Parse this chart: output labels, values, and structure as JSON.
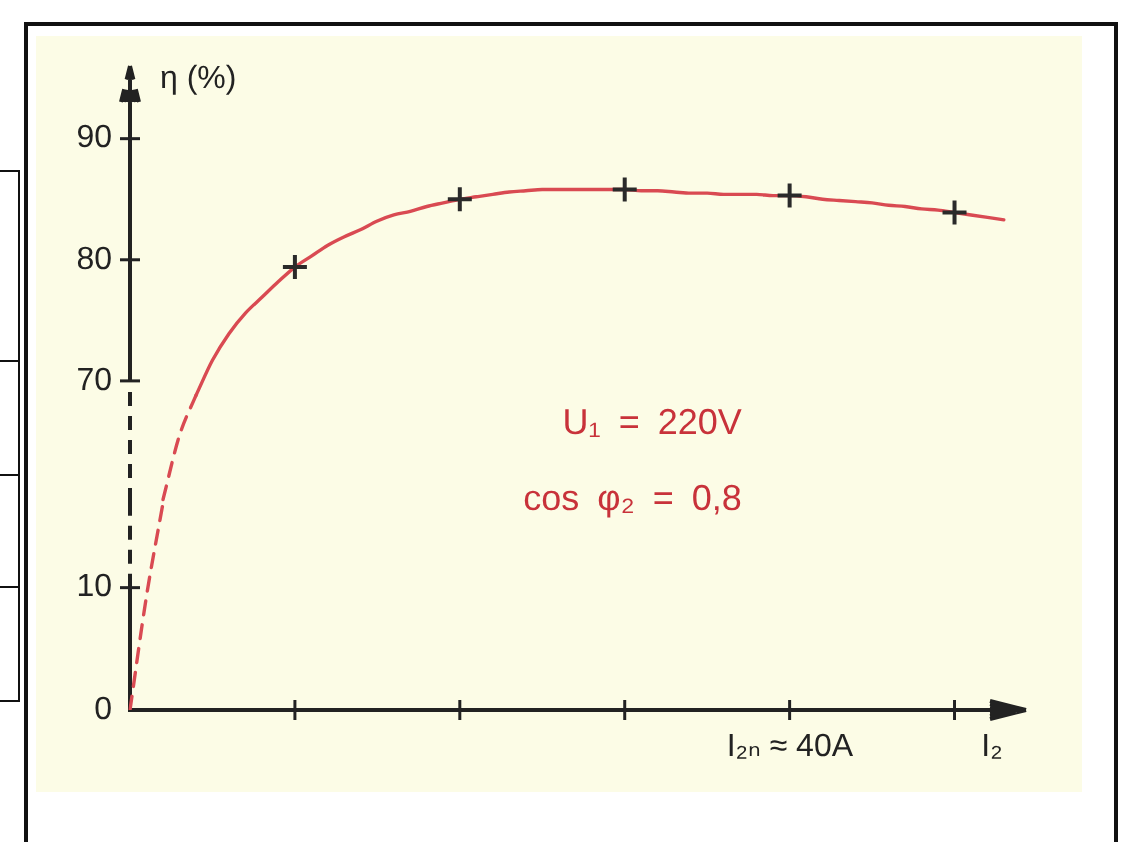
{
  "chart_data": [
    {
      "type": "line",
      "ylabel": "η (%)",
      "annotations": [
        "U₁ = 220V",
        "cos φ₂ = 0,8"
      ],
      "categories": [
        null,
        null,
        null,
        null,
        null,
        null,
        null,
        null,
        null,
        null,
        null,
        null,
        null,
        null,
        null,
        null,
        null,
        null,
        null,
        null,
        null,
        null,
        null,
        null,
        null,
        null,
        null,
        null,
        null,
        null,
        null,
        null,
        null,
        null,
        null,
        null,
        null,
        null,
        null,
        null,
        null,
        null,
        null,
        null,
        null,
        null,
        null,
        null,
        null,
        null,
        null,
        null,
        null,
        null
      ],
      "tick_labels": "y",
      "ylim": [
        60,
        96
      ],
      "yticks": [
        70,
        80,
        90
      ],
      "series": [
        {
          "color": "#d94a52",
          "line_style": "dashed",
          "marker": "none",
          "values": [
            null,
            null,
            60.2,
            65.5,
            68.8,
            null,
            null,
            null,
            null,
            null,
            null,
            null,
            null,
            null,
            null,
            null,
            null,
            null,
            null,
            null,
            null,
            null,
            null,
            null,
            null,
            null,
            null,
            null,
            null,
            null,
            null,
            null,
            null,
            null,
            null,
            null,
            null,
            null,
            null,
            null,
            null,
            null,
            null,
            null,
            null,
            null,
            null,
            null,
            null,
            null,
            null,
            null,
            null,
            null
          ]
        },
        {
          "color": "#d94a52",
          "line_style": "solid",
          "marker": "none",
          "values": [
            null,
            null,
            null,
            null,
            68.8,
            71.7,
            73.9,
            75.6,
            76.9,
            78.2,
            79.4,
            80.3,
            81.2,
            81.9,
            82.5,
            83.2,
            83.7,
            84.0,
            84.4,
            84.7,
            85.0,
            85.2,
            85.4,
            85.6,
            85.7,
            85.8,
            85.8,
            85.8,
            85.8,
            85.8,
            85.8,
            85.7,
            85.7,
            85.6,
            85.5,
            85.5,
            85.4,
            85.4,
            85.4,
            85.3,
            85.3,
            85.2,
            85.0,
            84.9,
            84.8,
            84.7,
            84.5,
            84.4,
            84.2,
            84.1,
            83.9,
            83.7,
            83.5,
            83.3
          ]
        },
        {
          "type": "scatter",
          "color": "#2a2a2a",
          "marker": "cross",
          "values": [
            null,
            null,
            null,
            null,
            null,
            null,
            null,
            null,
            null,
            null,
            79.4,
            null,
            null,
            null,
            null,
            null,
            null,
            null,
            null,
            null,
            85.0,
            null,
            null,
            null,
            null,
            null,
            null,
            null,
            null,
            null,
            85.8,
            null,
            null,
            null,
            null,
            null,
            null,
            null,
            null,
            null,
            85.3,
            null,
            null,
            null,
            null,
            null,
            null,
            null,
            null,
            null,
            83.9,
            null,
            null,
            null
          ]
        }
      ]
    },
    {
      "type": "line",
      "xlabel": "I₂",
      "annotations": [
        "I₂ₙ ≈ 40A"
      ],
      "categories": [
        null,
        null,
        null,
        null,
        null,
        null,
        null,
        null,
        null,
        null,
        null,
        null,
        null,
        null,
        null,
        null,
        null,
        null,
        null,
        null,
        null,
        null,
        null,
        null,
        null,
        null,
        null,
        null,
        null,
        null,
        null,
        null,
        null,
        null,
        null,
        null,
        null,
        null,
        null,
        null,
        null,
        null,
        null,
        null,
        null,
        null,
        null,
        null,
        null,
        null,
        null,
        null,
        null,
        null
      ],
      "ylim": [
        0,
        17
      ],
      "yticks": [
        0,
        10
      ],
      "series": [
        {
          "color": "#d94a52",
          "line_style": "dashed",
          "marker": "none",
          "values": [
            0,
            9.3,
            16.9,
            null,
            null,
            null,
            null,
            null,
            null,
            null,
            null,
            null,
            null,
            null,
            null,
            null,
            null,
            null,
            null,
            null,
            null,
            null,
            null,
            null,
            null,
            null,
            null,
            null,
            null,
            null,
            null,
            null,
            null,
            null,
            null,
            null,
            null,
            null,
            null,
            null,
            null,
            null,
            null,
            null,
            null,
            null,
            null,
            null,
            null,
            null,
            null,
            null,
            null,
            null
          ]
        }
      ]
    }
  ]
}
